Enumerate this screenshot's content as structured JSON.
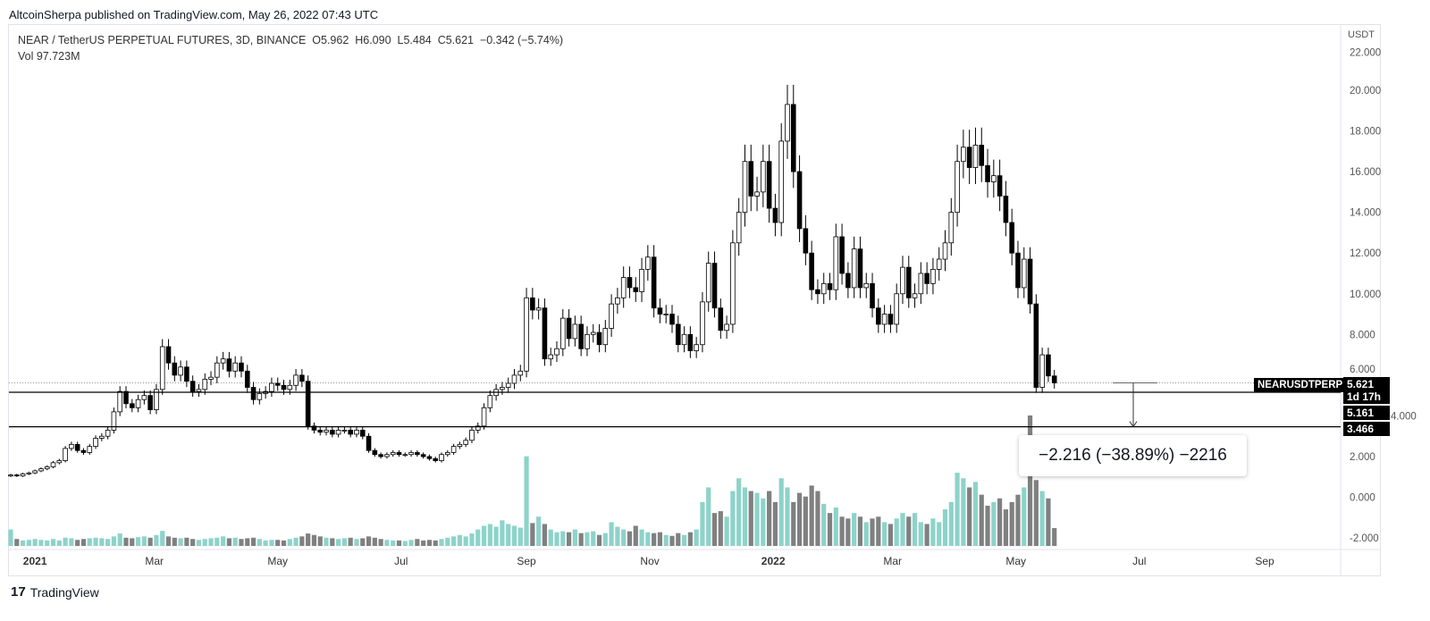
{
  "header": {
    "published": "AltcoinSherpa published on TradingView.com, May 26, 2022 07:43 UTC"
  },
  "legend": {
    "symbol": "NEAR / TetherUS PERPETUAL FUTURES, 3D, BINANCE",
    "open": "O5.962",
    "high": "H6.090",
    "low": "L5.484",
    "close": "C5.621",
    "change": "−0.342 (−5.74%)",
    "volume": "Vol  97.723M"
  },
  "price_axis": {
    "currency": "USDT"
  },
  "tags": {
    "symbol": "NEARUSDTPERP",
    "last_price": "5.621",
    "countdown": "1d 17h",
    "level1": "5.161",
    "level2": "3.466"
  },
  "measure": {
    "text": "−2.216 (−38.89%) −2216"
  },
  "brand": {
    "name": "TradingView"
  },
  "colors": {
    "up_volume": "#8dd3ca",
    "down_volume": "#808080",
    "up_candle": "#ffffff",
    "down_candle": "#000000"
  },
  "chart_data": {
    "type": "candlestick",
    "title": "NEAR / TetherUS PERPETUAL FUTURES, 3D, BINANCE",
    "interval_days": 3,
    "start_date": "2020-12-20",
    "ylim": [
      -2.6,
      22.5
    ],
    "yticks": [
      "22.000",
      "20.000",
      "18.000",
      "16.000",
      "14.000",
      "12.000",
      "10.000",
      "8.000",
      "6.000",
      "4.000",
      "2.000",
      "0.000",
      "-2.000"
    ],
    "ytick_values": [
      22,
      20,
      18,
      16,
      14,
      12,
      10,
      8,
      6,
      4,
      2,
      0,
      -2
    ],
    "xticks": [
      "2021",
      "Mar",
      "May",
      "Jul",
      "Sep",
      "Nov",
      "2022",
      "Mar",
      "May",
      "Jul",
      "Sep"
    ],
    "xtick_days": [
      12,
      71,
      132,
      193,
      255,
      316,
      377,
      436,
      497,
      558,
      620
    ],
    "horizontal_levels": [
      5.161,
      3.466
    ],
    "closes": [
      1.1,
      1.05,
      1.15,
      1.2,
      1.3,
      1.4,
      1.5,
      1.7,
      1.8,
      2.4,
      2.6,
      2.3,
      2.2,
      2.5,
      2.9,
      3.0,
      3.3,
      4.2,
      5.2,
      4.6,
      4.4,
      4.8,
      5.0,
      4.3,
      5.3,
      7.4,
      6.6,
      6.0,
      6.4,
      5.7,
      5.2,
      5.3,
      5.8,
      5.9,
      6.6,
      6.8,
      6.2,
      6.6,
      6.2,
      5.4,
      4.8,
      5.1,
      5.2,
      5.6,
      5.5,
      5.3,
      5.5,
      6.0,
      5.7,
      3.5,
      3.3,
      3.2,
      3.3,
      3.1,
      3.3,
      3.3,
      3.1,
      3.3,
      3.0,
      2.3,
      2.1,
      2.0,
      2.1,
      2.2,
      2.1,
      2.1,
      2.2,
      2.1,
      2.0,
      1.9,
      1.8,
      2.1,
      2.2,
      2.5,
      2.6,
      2.8,
      3.3,
      3.5,
      4.4,
      5.0,
      5.3,
      5.4,
      5.6,
      6.0,
      6.2,
      9.8,
      9.2,
      9.3,
      6.8,
      7.0,
      7.3,
      8.8,
      7.8,
      8.5,
      7.3,
      8.0,
      8.1,
      7.5,
      8.3,
      9.5,
      9.8,
      10.8,
      10.3,
      10.1,
      11.2,
      11.8,
      9.3,
      9.0,
      9.0,
      8.5,
      7.5,
      8.0,
      7.2,
      7.5,
      9.6,
      11.5,
      9.3,
      8.2,
      8.5,
      12.5,
      14.0,
      16.5,
      14.8,
      15.0,
      16.5,
      14.2,
      13.5,
      17.5,
      19.3,
      16.0,
      13.2,
      12.0,
      10.2,
      10.0,
      10.5,
      10.2,
      12.8,
      11.0,
      10.3,
      12.2,
      10.3,
      10.5,
      9.3,
      8.5,
      9.0,
      8.5,
      10.0,
      11.3,
      9.8,
      10.0,
      11.0,
      10.5,
      11.2,
      11.7,
      12.5,
      14.0,
      16.5,
      17.2,
      16.2,
      17.3,
      16.3,
      15.5,
      15.8,
      14.8,
      13.5,
      12.0,
      10.3,
      11.7,
      9.5,
      5.4,
      7.0,
      5.962,
      5.621
    ],
    "volumes_m": [
      90,
      38,
      30,
      33,
      38,
      33,
      30,
      38,
      30,
      45,
      42,
      33,
      38,
      42,
      45,
      42,
      38,
      52,
      68,
      45,
      42,
      48,
      52,
      45,
      60,
      82,
      52,
      45,
      42,
      45,
      38,
      33,
      38,
      42,
      45,
      52,
      42,
      45,
      38,
      42,
      45,
      38,
      30,
      33,
      33,
      30,
      38,
      45,
      52,
      68,
      60,
      52,
      45,
      42,
      38,
      42,
      45,
      38,
      42,
      52,
      45,
      38,
      33,
      30,
      30,
      27,
      33,
      38,
      30,
      33,
      30,
      38,
      45,
      52,
      60,
      52,
      68,
      90,
      110,
      120,
      105,
      140,
      120,
      110,
      100,
      490,
      125,
      160,
      120,
      90,
      75,
      80,
      75,
      90,
      70,
      75,
      80,
      60,
      70,
      130,
      105,
      90,
      80,
      110,
      90,
      75,
      70,
      75,
      60,
      55,
      70,
      60,
      75,
      90,
      240,
      320,
      180,
      190,
      160,
      300,
      370,
      320,
      300,
      290,
      260,
      300,
      240,
      370,
      320,
      240,
      290,
      270,
      330,
      300,
      230,
      180,
      210,
      160,
      150,
      180,
      160,
      130,
      150,
      160,
      130,
      120,
      150,
      180,
      160,
      180,
      130,
      120,
      150,
      130,
      200,
      240,
      400,
      370,
      320,
      350,
      280,
      220,
      240,
      260,
      200,
      240,
      280,
      320,
      713,
      360,
      300,
      260,
      97.723
    ]
  }
}
